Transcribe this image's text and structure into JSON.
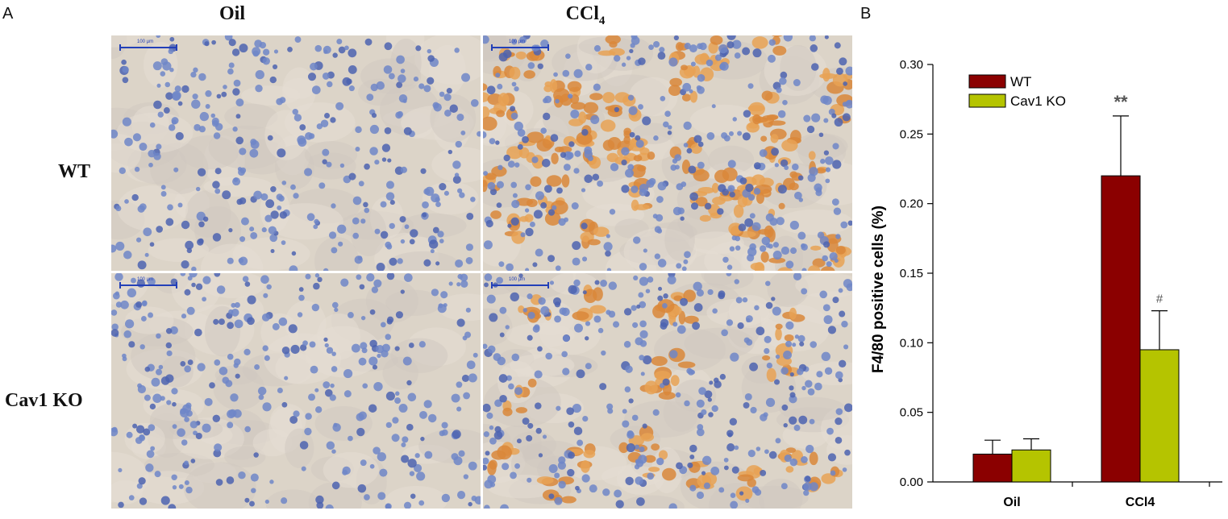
{
  "panel_a": {
    "letter": "A",
    "columns": [
      "Oil",
      "CCl4"
    ],
    "ccl4_main": "CCl",
    "ccl4_sub": "4",
    "rows": [
      "WT",
      "Cav1 KO"
    ],
    "scale_label": "100 µm"
  },
  "panel_b": {
    "letter": "B"
  },
  "chart_data": {
    "type": "bar",
    "categories": [
      "Oil",
      "CCl4"
    ],
    "series": [
      {
        "name": "WT",
        "values": [
          0.02,
          0.22
        ],
        "errors": [
          0.01,
          0.043
        ]
      },
      {
        "name": "Cav1 KO",
        "values": [
          0.023,
          0.095
        ],
        "errors": [
          0.008,
          0.028
        ]
      }
    ],
    "colors": [
      "#8b0000",
      "#b5c400"
    ],
    "annotations": [
      {
        "category": "CCl4",
        "series": "WT",
        "text": "**"
      },
      {
        "category": "CCl4",
        "series": "Cav1 KO",
        "text": "#"
      }
    ],
    "ylabel": "F4/80 positive cells  (%)",
    "xlabel": "",
    "ylim": [
      0,
      0.3
    ],
    "yticks": [
      "0.00",
      "0.05",
      "0.10",
      "0.15",
      "0.20",
      "0.25",
      "0.30"
    ],
    "grid": false,
    "legend": "top-left"
  }
}
